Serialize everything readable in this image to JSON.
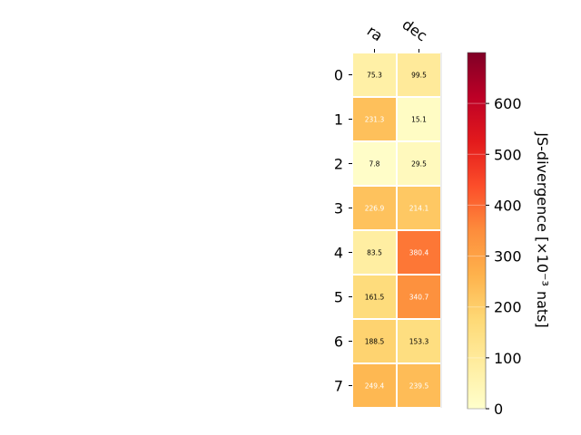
{
  "chart_data": {
    "type": "heatmap",
    "columns": [
      "ra",
      "dec"
    ],
    "rows": [
      "0",
      "1",
      "2",
      "3",
      "4",
      "5",
      "6",
      "7"
    ],
    "values": [
      [
        75.3,
        99.5
      ],
      [
        231.3,
        15.1
      ],
      [
        7.8,
        29.5
      ],
      [
        226.9,
        214.1
      ],
      [
        83.5,
        380.4
      ],
      [
        161.5,
        340.7
      ],
      [
        188.5,
        153.3
      ],
      [
        249.4,
        239.5
      ]
    ],
    "colorbar": {
      "label": "JS-divergence [×10⁻³ nats]",
      "range": [
        0,
        700
      ],
      "ticks": [
        0,
        100,
        200,
        300,
        400,
        500,
        600
      ],
      "colormap": "YlOrRd"
    },
    "colors": {
      "cmap_stops": [
        "#ffffcc",
        "#ffeda0",
        "#fed976",
        "#feb24c",
        "#fd8d3c",
        "#fc4e2a",
        "#e31a1c",
        "#bd0026",
        "#800026"
      ]
    }
  }
}
